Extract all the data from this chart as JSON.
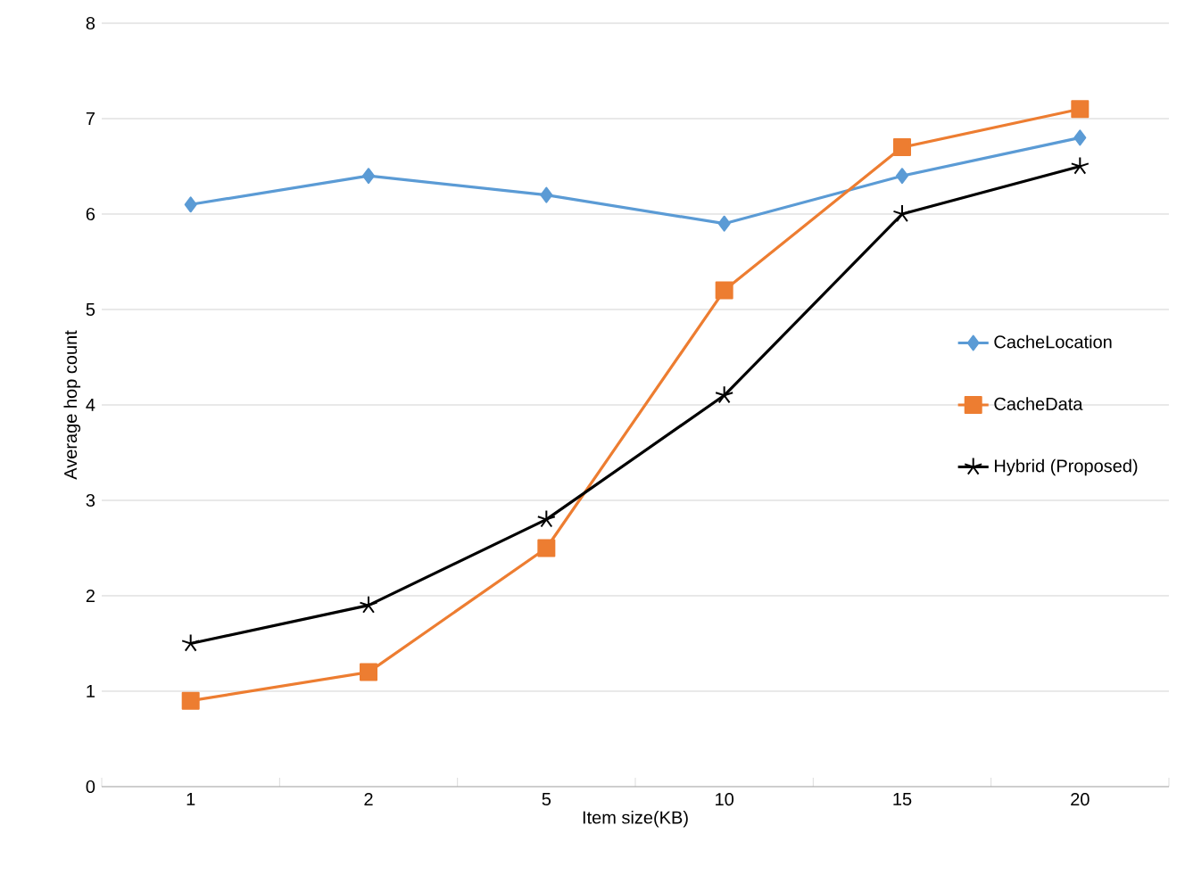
{
  "chart_data": {
    "type": "line",
    "xlabel": "Item size(KB)",
    "ylabel": "Average hop count",
    "categories": [
      "1",
      "2",
      "5",
      "10",
      "15",
      "20"
    ],
    "ylim": [
      0,
      8
    ],
    "yticks": [
      0,
      1,
      2,
      3,
      4,
      5,
      6,
      7,
      8
    ],
    "grid": "y",
    "legend": "right",
    "line_style": "solid",
    "series": [
      {
        "name": "CacheLocation",
        "color": "#5b9bd5",
        "marker": "diamond",
        "values": [
          6.1,
          6.4,
          6.2,
          5.9,
          6.4,
          6.8
        ]
      },
      {
        "name": "CacheData",
        "color": "#ed7d31",
        "marker": "square",
        "values": [
          0.9,
          1.2,
          2.5,
          5.2,
          6.7,
          7.1
        ]
      },
      {
        "name": "Hybrid (Proposed)",
        "color": "#000000",
        "marker": "cross",
        "values": [
          1.5,
          1.9,
          2.8,
          4.1,
          6.0,
          6.5
        ]
      }
    ]
  }
}
